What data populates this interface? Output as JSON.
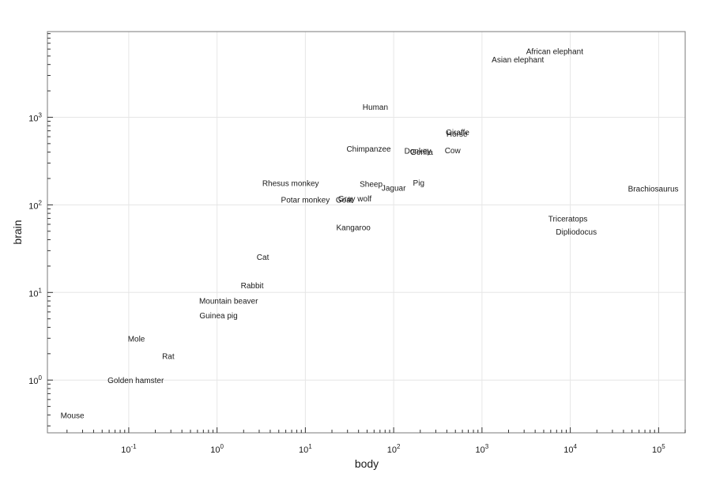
{
  "chart_data": {
    "type": "scatter",
    "title": "",
    "xlabel": "body",
    "ylabel": "brain",
    "x_scale": "log10",
    "y_scale": "log10",
    "xlim": [
      0.012,
      200000
    ],
    "ylim": [
      0.25,
      9500
    ],
    "grid": true,
    "x_ticks": [
      {
        "value": 0.1,
        "base": "10",
        "exp": "-1"
      },
      {
        "value": 1,
        "base": "10",
        "exp": "0"
      },
      {
        "value": 10,
        "base": "10",
        "exp": "1"
      },
      {
        "value": 100,
        "base": "10",
        "exp": "2"
      },
      {
        "value": 1000,
        "base": "10",
        "exp": "3"
      },
      {
        "value": 10000,
        "base": "10",
        "exp": "4"
      },
      {
        "value": 100000,
        "base": "10",
        "exp": "5"
      }
    ],
    "y_ticks": [
      {
        "value": 1,
        "base": "10",
        "exp": "0"
      },
      {
        "value": 10,
        "base": "10",
        "exp": "1"
      },
      {
        "value": 100,
        "base": "10",
        "exp": "2"
      },
      {
        "value": 1000,
        "base": "10",
        "exp": "3"
      }
    ],
    "points": [
      {
        "label": "Mountain beaver",
        "x": 1.35,
        "y": 8.1
      },
      {
        "label": "Cow",
        "x": 465,
        "y": 423
      },
      {
        "label": "Gray wolf",
        "x": 36.33,
        "y": 119.5
      },
      {
        "label": "Goat",
        "x": 27.66,
        "y": 115
      },
      {
        "label": "Guinea pig",
        "x": 1.04,
        "y": 5.5
      },
      {
        "label": "Dipliodocus",
        "x": 11700,
        "y": 50
      },
      {
        "label": "Asian elephant",
        "x": 2547,
        "y": 4603
      },
      {
        "label": "Donkey",
        "x": 187.1,
        "y": 419
      },
      {
        "label": "Horse",
        "x": 521,
        "y": 655
      },
      {
        "label": "Potar monkey",
        "x": 10,
        "y": 115
      },
      {
        "label": "Cat",
        "x": 3.3,
        "y": 25.6
      },
      {
        "label": "Giraffe",
        "x": 529,
        "y": 680
      },
      {
        "label": "Gorilla",
        "x": 207,
        "y": 406
      },
      {
        "label": "Human",
        "x": 62,
        "y": 1320
      },
      {
        "label": "African elephant",
        "x": 6654,
        "y": 5712
      },
      {
        "label": "Triceratops",
        "x": 9400,
        "y": 70
      },
      {
        "label": "Rhesus monkey",
        "x": 6.8,
        "y": 179
      },
      {
        "label": "Kangaroo",
        "x": 35,
        "y": 56
      },
      {
        "label": "Golden hamster",
        "x": 0.12,
        "y": 1
      },
      {
        "label": "Mouse",
        "x": 0.023,
        "y": 0.4
      },
      {
        "label": "Rabbit",
        "x": 2.5,
        "y": 12.1
      },
      {
        "label": "Sheep",
        "x": 55.5,
        "y": 175
      },
      {
        "label": "Jaguar",
        "x": 100,
        "y": 157
      },
      {
        "label": "Chimpanzee",
        "x": 52.16,
        "y": 440
      },
      {
        "label": "Rat",
        "x": 0.28,
        "y": 1.9
      },
      {
        "label": "Brachiosaurus",
        "x": 87000,
        "y": 154.5
      },
      {
        "label": "Mole",
        "x": 0.122,
        "y": 3
      },
      {
        "label": "Pig",
        "x": 192,
        "y": 180
      }
    ]
  }
}
